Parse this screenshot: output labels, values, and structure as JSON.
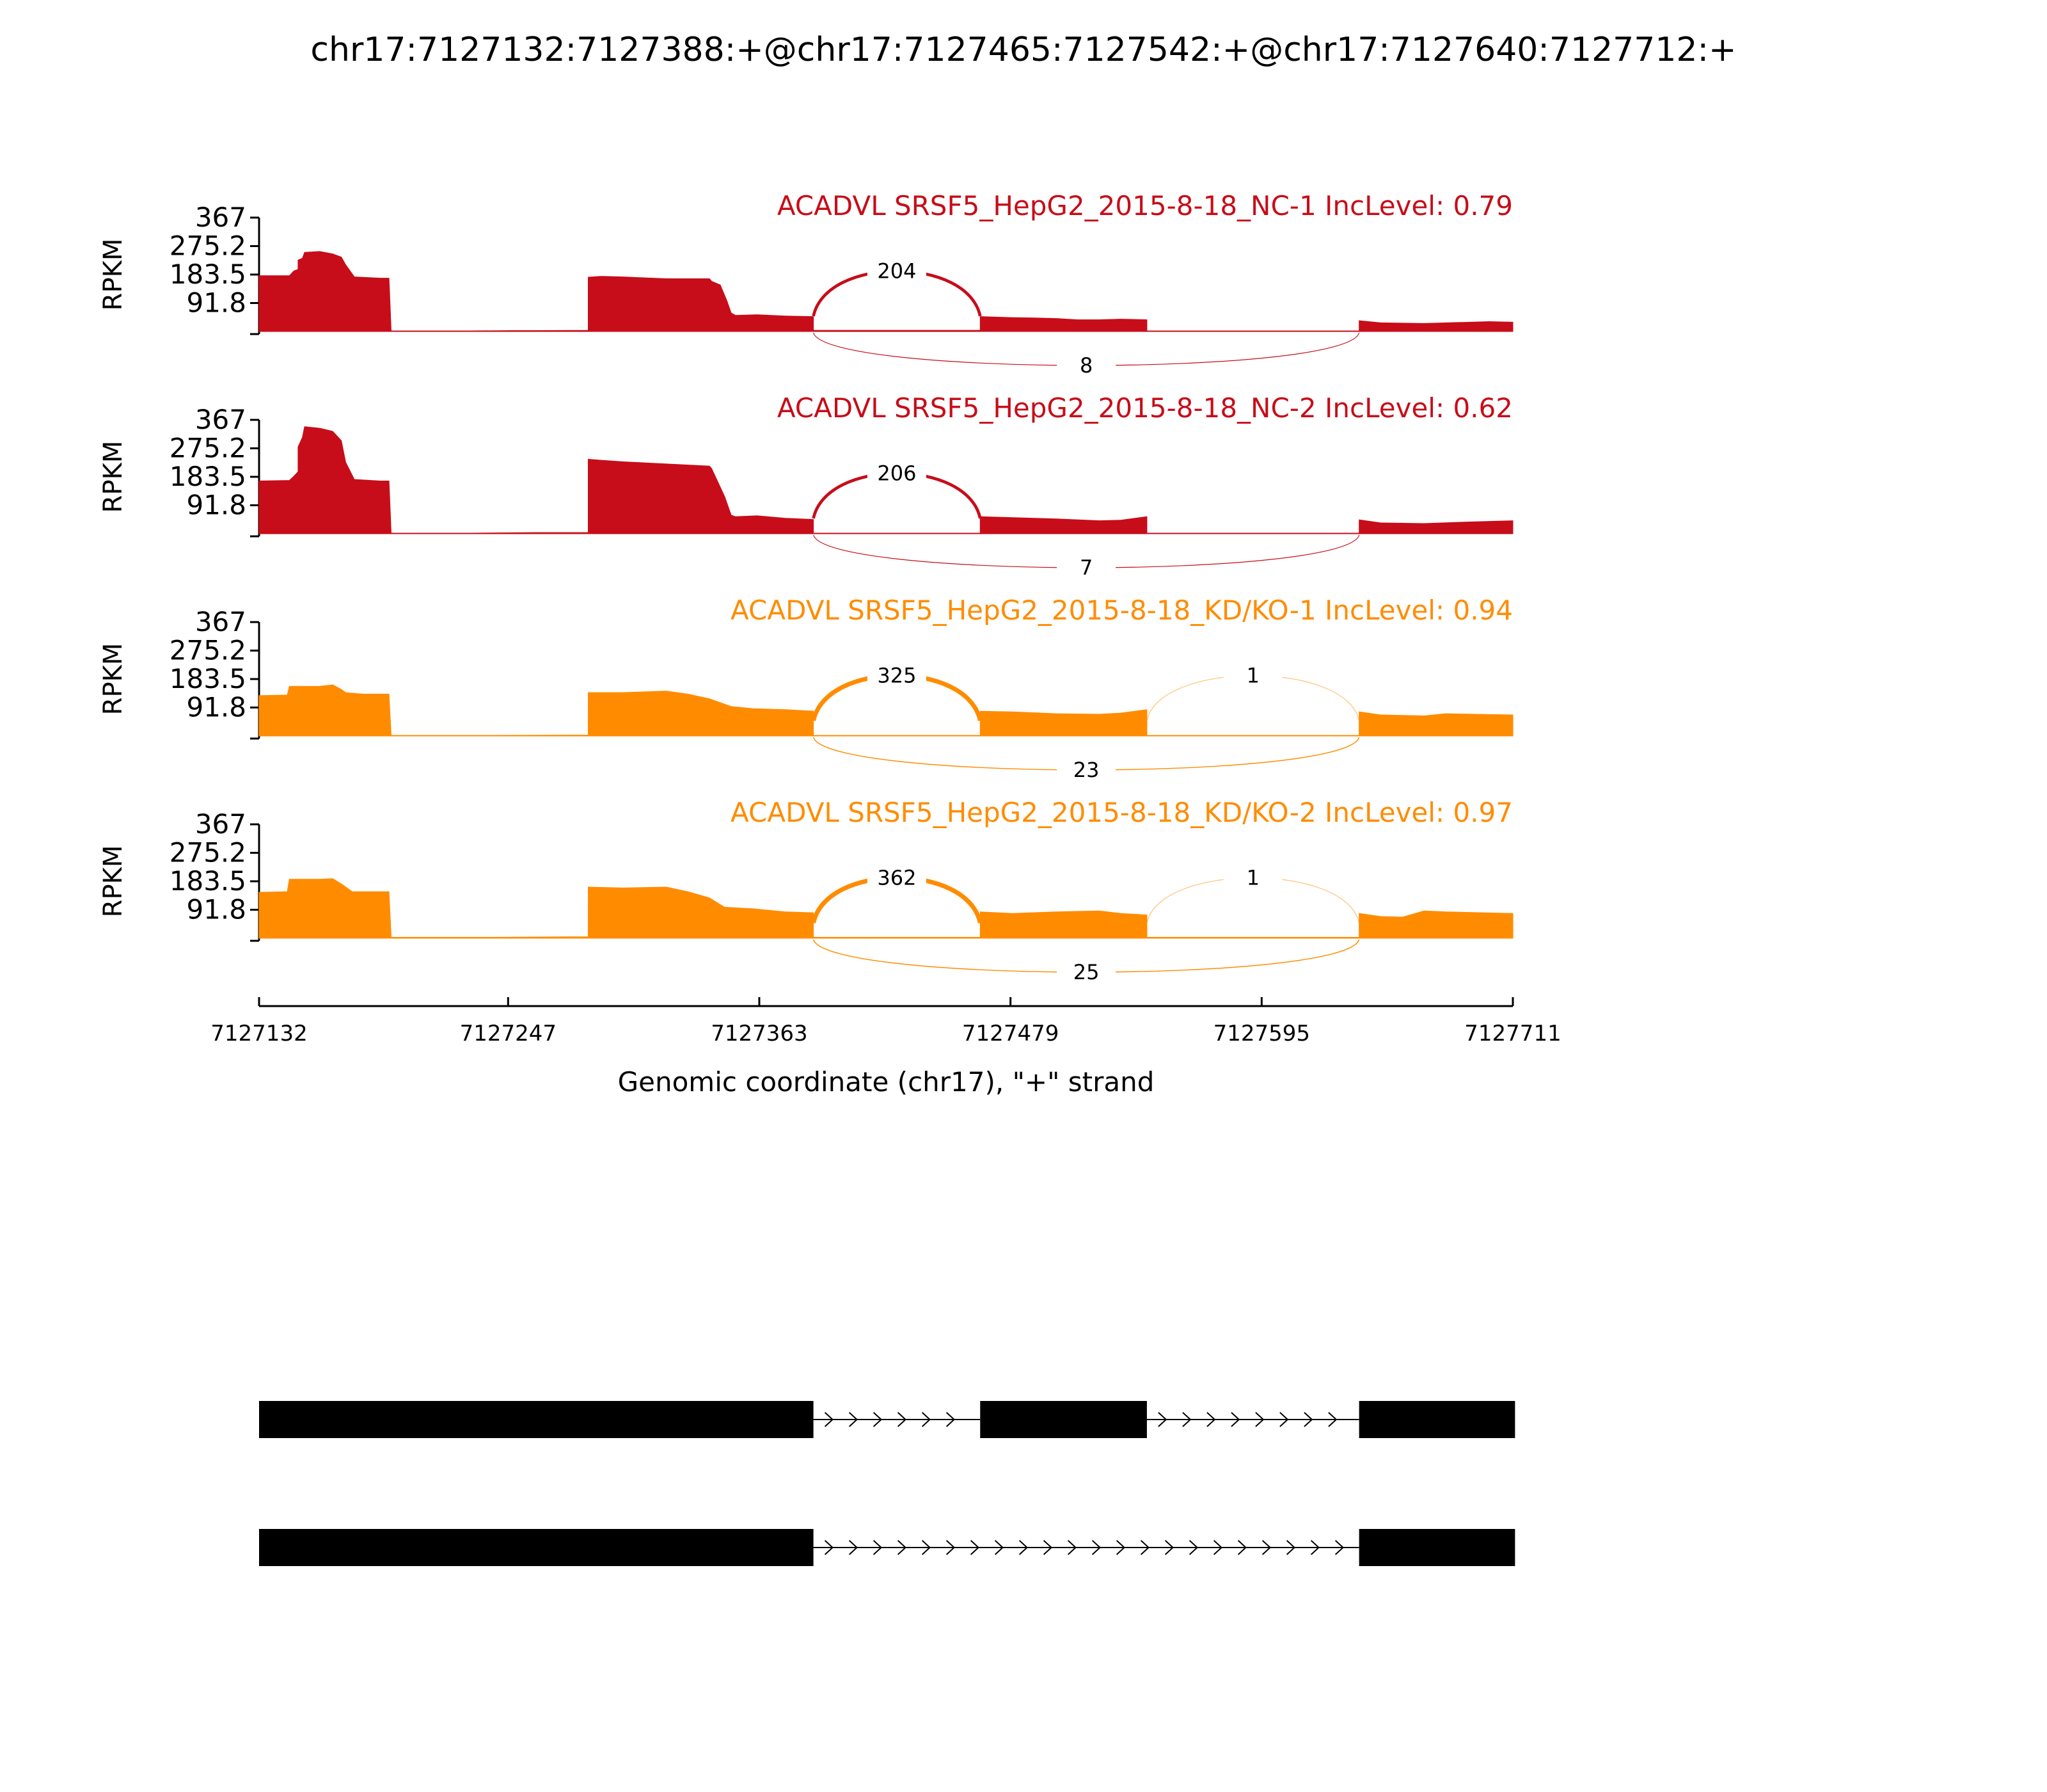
{
  "title": "chr17:7127132:7127388:+@chr17:7127465:7127542:+@chr17:7127640:7127712:+",
  "colors": {
    "nc": "#c70d19",
    "kd": "#ff8c00",
    "axis": "#000000",
    "gene": "#000000"
  },
  "chart_data": {
    "type": "area",
    "subtype": "sashimi",
    "xlabel": "Genomic coordinate (chr17), \"+\" strand",
    "ylabel": "RPKM",
    "xlim": [
      7127132,
      7127711
    ],
    "xticks": [
      "7127132",
      "7127247",
      "7127363",
      "7127479",
      "7127595",
      "7127711"
    ],
    "ylim": [
      0,
      367
    ],
    "yticks": [
      "367",
      "275.2",
      "183.5",
      "91.8"
    ],
    "tracks": [
      {
        "label": "ACADVL SRSF5_HepG2_2015-8-18_NC-1 IncLevel: 0.79",
        "group": "nc",
        "coverage": [
          [
            7127132,
            180
          ],
          [
            7127146,
            180
          ],
          [
            7127148,
            195
          ],
          [
            7127150,
            200
          ],
          [
            7127150,
            230
          ],
          [
            7127152,
            236
          ],
          [
            7127153,
            255
          ],
          [
            7127160,
            258
          ],
          [
            7127166,
            250
          ],
          [
            7127170,
            240
          ],
          [
            7127172,
            215
          ],
          [
            7127176,
            176
          ],
          [
            7127188,
            172
          ],
          [
            7127192,
            172
          ],
          [
            7127193,
            2
          ],
          [
            7127230,
            2
          ],
          [
            7127250,
            3
          ],
          [
            7127260,
            3
          ],
          [
            7127284,
            4
          ],
          [
            7127284,
            175
          ],
          [
            7127290,
            178
          ],
          [
            7127300,
            176
          ],
          [
            7127320,
            170
          ],
          [
            7127340,
            170
          ],
          [
            7127341,
            162
          ],
          [
            7127345,
            150
          ],
          [
            7127348,
            100
          ],
          [
            7127350,
            60
          ],
          [
            7127352,
            52
          ],
          [
            7127362,
            54
          ],
          [
            7127375,
            50
          ],
          [
            7127388,
            48
          ],
          [
            7127388,
            4
          ],
          [
            7127400,
            4
          ],
          [
            7127440,
            4
          ],
          [
            7127465,
            4
          ],
          [
            7127465,
            48
          ],
          [
            7127480,
            45
          ],
          [
            7127490,
            44
          ],
          [
            7127500,
            42
          ],
          [
            7127510,
            38
          ],
          [
            7127520,
            38
          ],
          [
            7127530,
            40
          ],
          [
            7127542,
            38
          ],
          [
            7127542,
            2
          ],
          [
            7127600,
            2
          ],
          [
            7127640,
            2
          ],
          [
            7127640,
            35
          ],
          [
            7127650,
            28
          ],
          [
            7127670,
            26
          ],
          [
            7127700,
            32
          ],
          [
            7127711,
            30
          ]
        ],
        "junctions": [
          {
            "from": 7127388,
            "to": 7127465,
            "count": "204",
            "side": "above"
          },
          {
            "from": 7127388,
            "to": 7127640,
            "count": "8",
            "side": "below"
          }
        ]
      },
      {
        "label": "ACADVL SRSF5_HepG2_2015-8-18_NC-2 IncLevel: 0.62",
        "group": "nc",
        "coverage": [
          [
            7127132,
            170
          ],
          [
            7127146,
            172
          ],
          [
            7127148,
            185
          ],
          [
            7127150,
            200
          ],
          [
            7127150,
            280
          ],
          [
            7127152,
            310
          ],
          [
            7127153,
            345
          ],
          [
            7127160,
            340
          ],
          [
            7127166,
            330
          ],
          [
            7127170,
            300
          ],
          [
            7127172,
            230
          ],
          [
            7127176,
            175
          ],
          [
            7127188,
            170
          ],
          [
            7127192,
            170
          ],
          [
            7127193,
            2
          ],
          [
            7127230,
            2
          ],
          [
            7127260,
            4
          ],
          [
            7127284,
            4
          ],
          [
            7127284,
            240
          ],
          [
            7127290,
            237
          ],
          [
            7127300,
            232
          ],
          [
            7127320,
            225
          ],
          [
            7127340,
            218
          ],
          [
            7127341,
            210
          ],
          [
            7127345,
            150
          ],
          [
            7127347,
            120
          ],
          [
            7127350,
            60
          ],
          [
            7127352,
            55
          ],
          [
            7127362,
            58
          ],
          [
            7127375,
            50
          ],
          [
            7127388,
            46
          ],
          [
            7127388,
            2
          ],
          [
            7127440,
            2
          ],
          [
            7127465,
            2
          ],
          [
            7127465,
            55
          ],
          [
            7127480,
            52
          ],
          [
            7127500,
            48
          ],
          [
            7127520,
            42
          ],
          [
            7127530,
            44
          ],
          [
            7127542,
            55
          ],
          [
            7127542,
            2
          ],
          [
            7127600,
            2
          ],
          [
            7127640,
            2
          ],
          [
            7127640,
            45
          ],
          [
            7127650,
            35
          ],
          [
            7127670,
            33
          ],
          [
            7127690,
            38
          ],
          [
            7127711,
            42
          ]
        ],
        "junctions": [
          {
            "from": 7127388,
            "to": 7127465,
            "count": "206",
            "side": "above"
          },
          {
            "from": 7127388,
            "to": 7127640,
            "count": "7",
            "side": "below"
          }
        ]
      },
      {
        "label": "ACADVL SRSF5_HepG2_2015-8-18_KD/KO-1 IncLevel: 0.94",
        "group": "kd",
        "coverage": [
          [
            7127132,
            130
          ],
          [
            7127145,
            132
          ],
          [
            7127146,
            160
          ],
          [
            7127160,
            160
          ],
          [
            7127166,
            165
          ],
          [
            7127170,
            150
          ],
          [
            7127172,
            140
          ],
          [
            7127180,
            135
          ],
          [
            7127192,
            135
          ],
          [
            7127193,
            2
          ],
          [
            7127240,
            2
          ],
          [
            7127284,
            3
          ],
          [
            7127284,
            140
          ],
          [
            7127300,
            140
          ],
          [
            7127320,
            145
          ],
          [
            7127330,
            135
          ],
          [
            7127340,
            120
          ],
          [
            7127350,
            95
          ],
          [
            7127360,
            88
          ],
          [
            7127375,
            85
          ],
          [
            7127388,
            80
          ],
          [
            7127388,
            2
          ],
          [
            7127440,
            2
          ],
          [
            7127465,
            2
          ],
          [
            7127465,
            80
          ],
          [
            7127480,
            78
          ],
          [
            7127500,
            72
          ],
          [
            7127520,
            70
          ],
          [
            7127530,
            74
          ],
          [
            7127542,
            85
          ],
          [
            7127542,
            2
          ],
          [
            7127640,
            2
          ],
          [
            7127640,
            78
          ],
          [
            7127650,
            68
          ],
          [
            7127670,
            65
          ],
          [
            7127680,
            72
          ],
          [
            7127711,
            68
          ]
        ],
        "junctions": [
          {
            "from": 7127388,
            "to": 7127465,
            "count": "325",
            "side": "above"
          },
          {
            "from": 7127542,
            "to": 7127640,
            "count": "1",
            "side": "above"
          },
          {
            "from": 7127388,
            "to": 7127640,
            "count": "23",
            "side": "below"
          }
        ]
      },
      {
        "label": "ACADVL SRSF5_HepG2_2015-8-18_KD/KO-2 IncLevel: 0.97",
        "group": "kd",
        "coverage": [
          [
            7127132,
            148
          ],
          [
            7127145,
            150
          ],
          [
            7127146,
            190
          ],
          [
            7127160,
            190
          ],
          [
            7127166,
            192
          ],
          [
            7127170,
            175
          ],
          [
            7127175,
            150
          ],
          [
            7127192,
            150
          ],
          [
            7127193,
            3
          ],
          [
            7127240,
            3
          ],
          [
            7127284,
            5
          ],
          [
            7127284,
            165
          ],
          [
            7127300,
            162
          ],
          [
            7127320,
            165
          ],
          [
            7127330,
            150
          ],
          [
            7127340,
            130
          ],
          [
            7127347,
            100
          ],
          [
            7127360,
            95
          ],
          [
            7127375,
            85
          ],
          [
            7127388,
            82
          ],
          [
            7127388,
            3
          ],
          [
            7127440,
            3
          ],
          [
            7127465,
            3
          ],
          [
            7127465,
            85
          ],
          [
            7127480,
            80
          ],
          [
            7127500,
            85
          ],
          [
            7127520,
            88
          ],
          [
            7127530,
            80
          ],
          [
            7127542,
            75
          ],
          [
            7127542,
            3
          ],
          [
            7127640,
            3
          ],
          [
            7127640,
            80
          ],
          [
            7127650,
            70
          ],
          [
            7127660,
            68
          ],
          [
            7127670,
            88
          ],
          [
            7127680,
            85
          ],
          [
            7127711,
            80
          ]
        ],
        "junctions": [
          {
            "from": 7127388,
            "to": 7127465,
            "count": "362",
            "side": "above"
          },
          {
            "from": 7127542,
            "to": 7127640,
            "count": "1",
            "side": "above"
          },
          {
            "from": 7127388,
            "to": 7127640,
            "count": "25",
            "side": "below"
          }
        ]
      }
    ],
    "isoforms": [
      {
        "exons": [
          [
            7127132,
            7127388
          ],
          [
            7127465,
            7127542
          ],
          [
            7127640,
            7127712
          ]
        ]
      },
      {
        "exons": [
          [
            7127132,
            7127388
          ],
          [
            7127640,
            7127712
          ]
        ]
      }
    ]
  }
}
